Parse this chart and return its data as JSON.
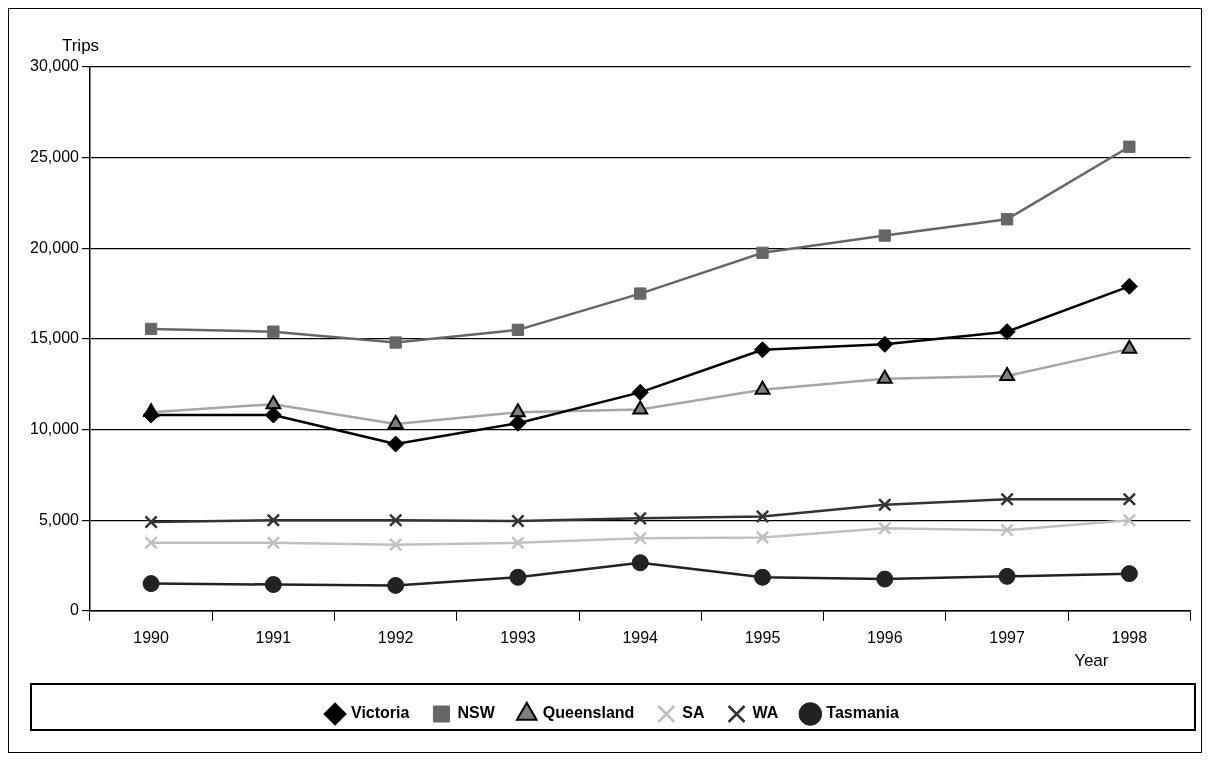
{
  "chart_data": {
    "type": "line",
    "ylabel": "Trips",
    "xlabel": "Year",
    "categories": [
      "1990",
      "1991",
      "1992",
      "1993",
      "1994",
      "1995",
      "1996",
      "1997",
      "1998"
    ],
    "ylim": [
      0,
      30000
    ],
    "yticks": [
      {
        "value": 0,
        "label": "0"
      },
      {
        "value": 5000,
        "label": "5,000"
      },
      {
        "value": 10000,
        "label": "10,000"
      },
      {
        "value": 15000,
        "label": "15,000"
      },
      {
        "value": 20000,
        "label": "20,000"
      },
      {
        "value": 25000,
        "label": "25,000"
      },
      {
        "value": 30000,
        "label": "30,000"
      }
    ],
    "grid": "y",
    "legend": "bottom",
    "series": [
      {
        "name": "Victoria",
        "color": "#000000",
        "marker": "diamond",
        "values": [
          10800,
          10800,
          9200,
          10350,
          12050,
          14400,
          14700,
          15400,
          17900
        ]
      },
      {
        "name": "NSW",
        "color": "#666666",
        "marker": "square",
        "values": [
          15550,
          15400,
          14800,
          15500,
          17500,
          19750,
          20700,
          21600,
          25600
        ]
      },
      {
        "name": "Queensland",
        "color": "#a6a6a6",
        "marker": "triangle",
        "values": [
          10950,
          11400,
          10300,
          10950,
          11100,
          12200,
          12800,
          12950,
          14450
        ]
      },
      {
        "name": "SA",
        "color": "#c0c0c0",
        "marker": "cross",
        "values": [
          3750,
          3750,
          3650,
          3750,
          4000,
          4050,
          4550,
          4450,
          5000
        ]
      },
      {
        "name": "WA",
        "color": "#333333",
        "marker": "cross",
        "values": [
          4900,
          5000,
          5000,
          4950,
          5100,
          5200,
          5850,
          6150,
          6150
        ]
      },
      {
        "name": "Tasmania",
        "color": "#222222",
        "marker": "circle",
        "values": [
          1500,
          1450,
          1400,
          1850,
          2650,
          1850,
          1750,
          1900,
          2050
        ]
      }
    ]
  }
}
